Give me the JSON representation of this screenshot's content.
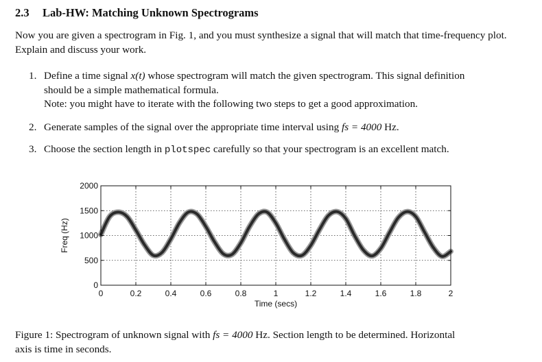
{
  "section": {
    "number": "2.3",
    "title": "Lab-HW: Matching Unknown Spectrograms"
  },
  "intro": "Now you are given a spectrogram in Fig. 1, and you must synthesize a signal that will match that time-frequency plot. Explain and discuss your work.",
  "items": [
    {
      "n": "1.",
      "line1_a": "Define a time signal ",
      "line1_math": "x(t)",
      "line1_b": " whose spectrogram will match the given spectrogram. This signal definition",
      "line2": "should be a simple mathematical formula.",
      "note": "Note: you might have to iterate with the following two steps to get a good approximation."
    },
    {
      "n": "2.",
      "text_a": "Generate samples of the signal over the appropriate time interval using ",
      "math": "fs = 4000",
      "text_b": " Hz."
    },
    {
      "n": "3.",
      "text_a": "Choose the section length in ",
      "code": "plotspec",
      "text_b": " carefully so that your spectrogram is an excellent match."
    }
  ],
  "caption": {
    "line1_a": "Figure 1: Spectrogram of unknown signal with ",
    "line1_math": "fs = 4000",
    "line1_b": " Hz. Section length to be determined. Horizontal",
    "line2": "axis is time in seconds."
  },
  "chart_data": {
    "type": "line",
    "title": "",
    "xlabel": "Time (secs)",
    "ylabel": "Freq (Hz)",
    "xlim": [
      0,
      2
    ],
    "ylim": [
      0,
      2000
    ],
    "xticks": [
      "0",
      "0.2",
      "0.4",
      "0.6",
      "0.8",
      "1",
      "1.2",
      "1.4",
      "1.6",
      "1.8",
      "2"
    ],
    "yticks": [
      "0",
      "500",
      "1000",
      "1500",
      "2000"
    ],
    "grid": true,
    "series": [
      {
        "description_values": "instantaneous frequency (Hz)",
        "x": [
          0,
          0.05,
          0.1,
          0.15,
          0.2,
          0.25,
          0.3,
          0.35,
          0.4,
          0.45,
          0.5,
          0.55,
          0.6,
          0.65,
          0.7,
          0.75,
          0.8,
          0.85,
          0.9,
          0.95,
          1.0,
          1.05,
          1.1,
          1.15,
          1.2,
          1.25,
          1.3,
          1.35,
          1.4,
          1.45,
          1.5,
          1.55,
          1.6,
          1.65,
          1.7,
          1.75,
          1.8,
          1.85,
          1.9,
          1.95,
          2.0
        ],
        "values": [
          1020,
          1380,
          1470,
          1380,
          1110,
          810,
          600,
          660,
          930,
          1260,
          1470,
          1430,
          1180,
          870,
          630,
          620,
          850,
          1180,
          1430,
          1470,
          1250,
          920,
          650,
          600,
          800,
          1120,
          1400,
          1480,
          1340,
          1000,
          710,
          590,
          740,
          1060,
          1360,
          1480,
          1380,
          1070,
          760,
          580,
          680
        ]
      }
    ],
    "line_color": "#2a2a2a"
  }
}
